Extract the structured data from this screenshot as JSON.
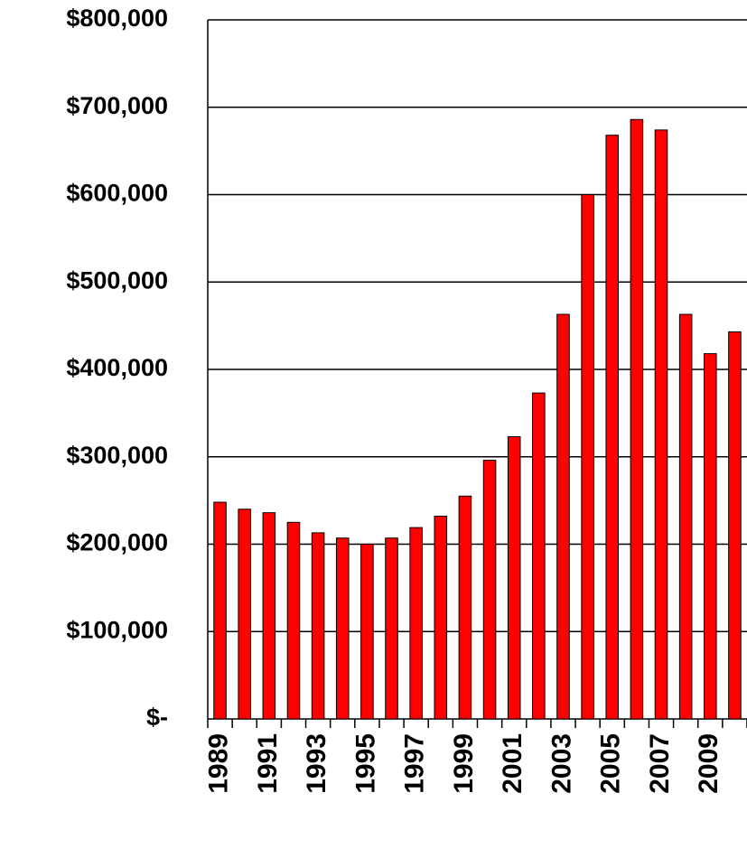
{
  "chart_data": {
    "type": "bar",
    "categories": [
      "1989",
      null,
      "1991",
      null,
      "1993",
      null,
      "1995",
      null,
      "1997",
      null,
      "1999",
      null,
      "2001",
      null,
      "2003",
      null,
      "2005",
      null,
      "2007",
      null,
      "2009",
      null
    ],
    "values": [
      248000,
      240000,
      236000,
      225000,
      213000,
      207000,
      200000,
      207000,
      219000,
      232000,
      255000,
      296000,
      323000,
      373000,
      463000,
      600000,
      668000,
      686000,
      674000,
      463000,
      418000,
      443000
    ],
    "color": "#ff0000",
    "ylim": [
      0,
      800000
    ],
    "yticks": [
      {
        "value": 0,
        "label": "$-"
      },
      {
        "value": 100000,
        "label": "$100,000"
      },
      {
        "value": 200000,
        "label": "$200,000"
      },
      {
        "value": 300000,
        "label": "$300,000"
      },
      {
        "value": 400000,
        "label": "$400,000"
      },
      {
        "value": 500000,
        "label": "$500,000"
      },
      {
        "value": 600000,
        "label": "$600,000"
      },
      {
        "value": 700000,
        "label": "$700,000"
      },
      {
        "value": 800000,
        "label": "$800,000"
      }
    ],
    "grid": true
  }
}
